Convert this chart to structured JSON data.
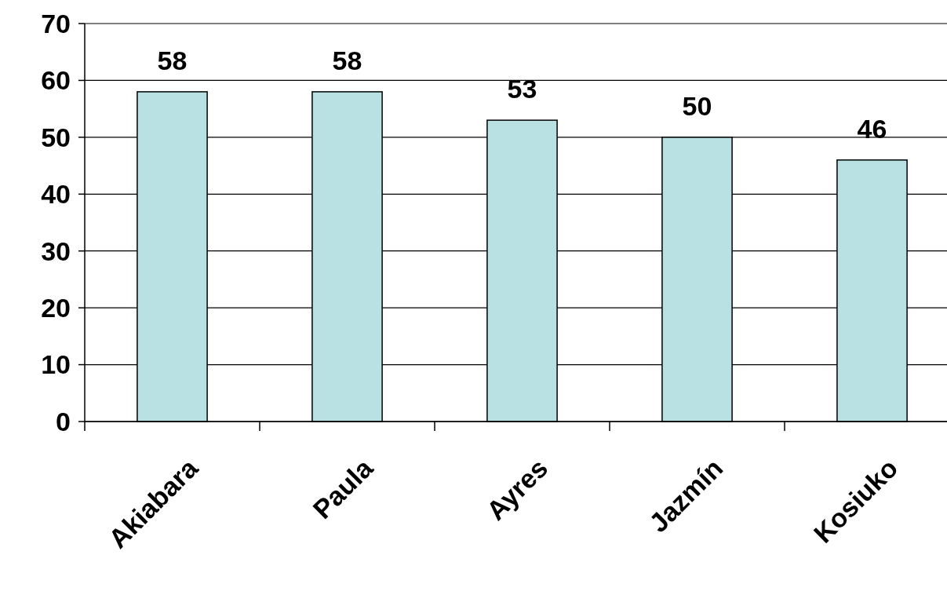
{
  "chart_data": {
    "type": "bar",
    "categories": [
      "Akiabara",
      "Paula",
      "Ayres",
      "Jazmín",
      "Kosiuko"
    ],
    "values": [
      58,
      58,
      53,
      50,
      46
    ],
    "color": "#b9e0e2",
    "ylim": [
      0,
      70
    ],
    "yticks": [
      0,
      10,
      20,
      30,
      40,
      50,
      60,
      70
    ],
    "grid": "y",
    "data_labels": true
  }
}
